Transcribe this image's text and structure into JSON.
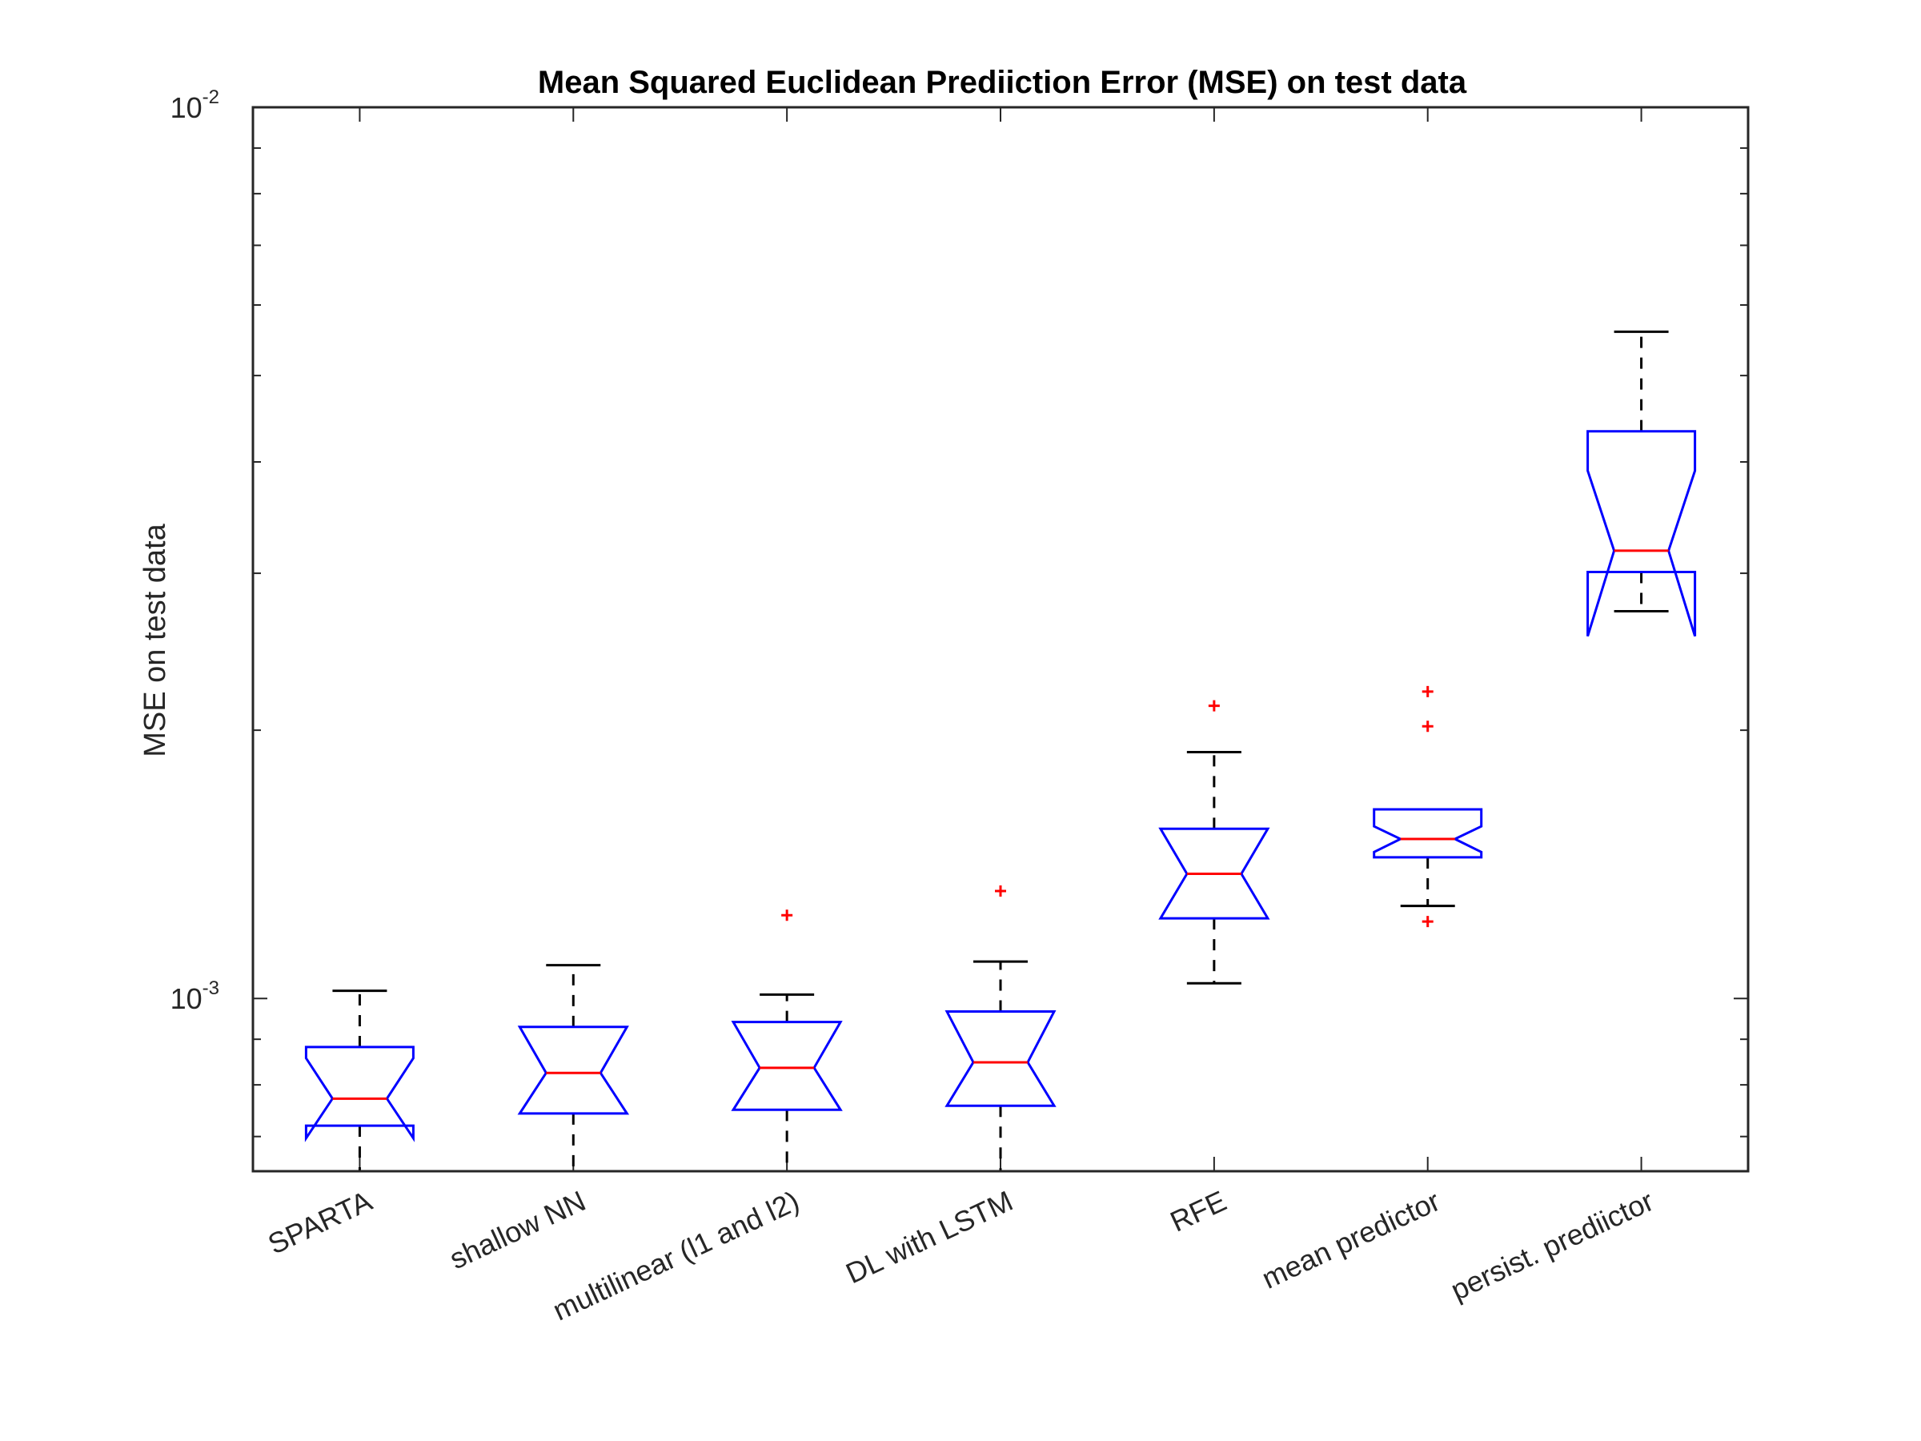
{
  "chart_data": {
    "type": "boxplot",
    "title": "Mean Squared Euclidean Prediiction Error (MSE) on test data",
    "xlabel": "",
    "ylabel": "MSE on test data",
    "yscale": "log",
    "ylim": [
      0.00064,
      0.01
    ],
    "grid": false,
    "ytick_labels": [
      {
        "value": 0.001,
        "base": "10",
        "exp": "-3"
      },
      {
        "value": 0.01,
        "base": "10",
        "exp": "-2"
      }
    ],
    "categories": [
      "SPARTA",
      "shallow NN",
      "multilinear (l1 and l2)",
      "DL with LSTM",
      "RFE",
      "mean predictor",
      "persist. prediictor"
    ],
    "boxes": [
      {
        "name": "SPARTA",
        "whisker_low": 0.00058,
        "q1": 0.00072,
        "median": 0.000772,
        "q3": 0.000882,
        "whisker_high": 0.00102,
        "notch_low": 0.000697,
        "notch_high": 0.000857,
        "outliers": []
      },
      {
        "name": "shallow NN",
        "whisker_low": 0.00058,
        "q1": 0.000743,
        "median": 0.000825,
        "q3": 0.000929,
        "whisker_high": 0.00109,
        "notch_low": 0.000743,
        "notch_high": 0.000929,
        "outliers": []
      },
      {
        "name": "multilinear (l1 and l2)",
        "whisker_low": 0.00058,
        "q1": 0.00075,
        "median": 0.000836,
        "q3": 0.000941,
        "whisker_high": 0.00101,
        "notch_low": 0.00075,
        "notch_high": 0.000941,
        "outliers": [
          0.00124
        ]
      },
      {
        "name": "DL with LSTM",
        "whisker_low": 0.00058,
        "q1": 0.000758,
        "median": 0.000848,
        "q3": 0.000967,
        "whisker_high": 0.0011,
        "notch_low": 0.000758,
        "notch_high": 0.000967,
        "outliers": [
          0.00132
        ]
      },
      {
        "name": "RFE",
        "whisker_low": 0.00104,
        "q1": 0.00123,
        "median": 0.00138,
        "q3": 0.00155,
        "whisker_high": 0.00189,
        "notch_low": 0.00123,
        "notch_high": 0.00155,
        "outliers": [
          0.00213
        ]
      },
      {
        "name": "mean predictor",
        "whisker_low": 0.00127,
        "q1": 0.00144,
        "median": 0.00151,
        "q3": 0.00163,
        "whisker_high": 0.00163,
        "notch_low": 0.00146,
        "notch_high": 0.00156,
        "outliers": [
          0.00122,
          0.00202,
          0.00221
        ]
      },
      {
        "name": "persist. prediictor",
        "whisker_low": 0.00272,
        "q1": 0.00301,
        "median": 0.00318,
        "q3": 0.00433,
        "whisker_high": 0.0056,
        "notch_low": 0.00255,
        "notch_high": 0.00391,
        "outliers": []
      }
    ],
    "colors": {
      "box": "#0000ff",
      "median": "#ff0000",
      "whisker": "#000000",
      "outlier": "#ff0000",
      "axes": "#262626"
    }
  }
}
